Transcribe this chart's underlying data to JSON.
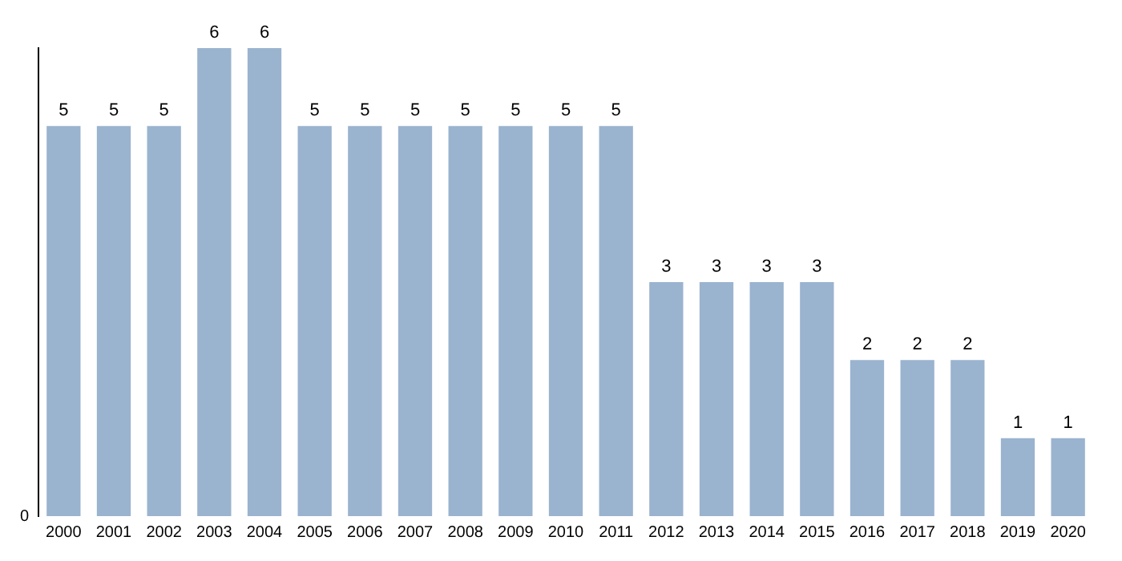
{
  "chart_data": {
    "type": "bar",
    "categories": [
      "2000",
      "2001",
      "2002",
      "2003",
      "2004",
      "2005",
      "2006",
      "2007",
      "2008",
      "2009",
      "2010",
      "2011",
      "2012",
      "2013",
      "2014",
      "2015",
      "2016",
      "2017",
      "2018",
      "2019",
      "2020"
    ],
    "values": [
      5,
      5,
      5,
      6,
      6,
      5,
      5,
      5,
      5,
      5,
      5,
      5,
      3,
      3,
      3,
      3,
      2,
      2,
      2,
      1,
      1
    ],
    "color": "#9ab3cf",
    "annotations": [
      "0"
    ],
    "grid": false,
    "legend": false,
    "data_labels": true
  }
}
